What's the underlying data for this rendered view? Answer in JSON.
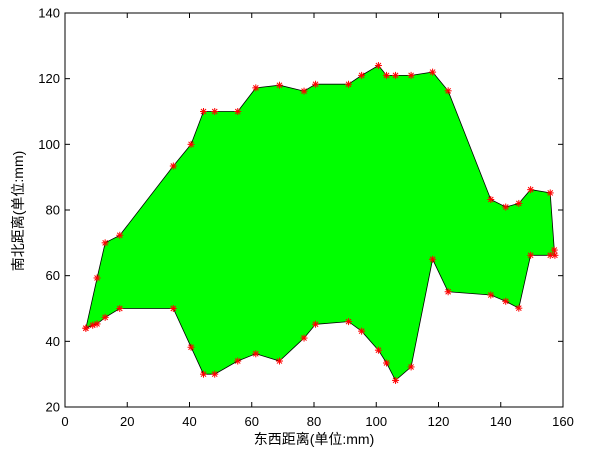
{
  "chart_data": {
    "type": "area",
    "title": "",
    "xlabel": "东西距离(单位:mm)",
    "ylabel": "南北距离(单位:mm)",
    "xlim": [
      0,
      160
    ],
    "ylim": [
      20,
      140
    ],
    "xticks": [
      "0",
      "20",
      "40",
      "60",
      "80",
      "100",
      "120",
      "140",
      "160"
    ],
    "yticks": [
      "20",
      "40",
      "60",
      "80",
      "100",
      "120",
      "140"
    ],
    "grid": false,
    "fill_color": "#00ff00",
    "edge_color": "#000000",
    "marker_color": "#ff0000",
    "marker": "*",
    "boundary_points": {
      "x": [
        6.7,
        10.3,
        12.9,
        17.6,
        34.8,
        40.5,
        44.5,
        48.1,
        55.5,
        61.3,
        68.9,
        76.8,
        80.5,
        91.1,
        95.3,
        100.7,
        103.3,
        106.2,
        111.2,
        118.1,
        123.1,
        136.8,
        141.6,
        145.8,
        149.6,
        155.9,
        157.2,
        157.4,
        155.9,
        149.6,
        145.8,
        141.6,
        136.8,
        123.1,
        118.1,
        111.2,
        106.2,
        103.3,
        100.7,
        95.3,
        91.1,
        80.5,
        76.8,
        68.9,
        61.3,
        55.5,
        48.1,
        44.5,
        40.5,
        34.8,
        17.6,
        12.9,
        10.3,
        8.9,
        6.7
      ],
      "y": [
        44,
        59.3,
        70,
        72.3,
        93.4,
        100,
        110,
        110,
        110,
        117.2,
        118,
        116.2,
        118.3,
        118.3,
        121,
        124,
        121,
        121,
        121,
        122,
        116.3,
        83.2,
        80.9,
        82,
        86.2,
        85.2,
        67.8,
        66.2,
        66.2,
        66.2,
        50.1,
        52.2,
        54.1,
        55.1,
        65,
        32.2,
        28.1,
        33.4,
        37.3,
        43.1,
        46,
        45.2,
        41,
        34,
        36.2,
        34,
        30,
        30,
        38.2,
        50,
        50,
        47.3,
        45.3,
        44.9,
        44
      ]
    }
  }
}
